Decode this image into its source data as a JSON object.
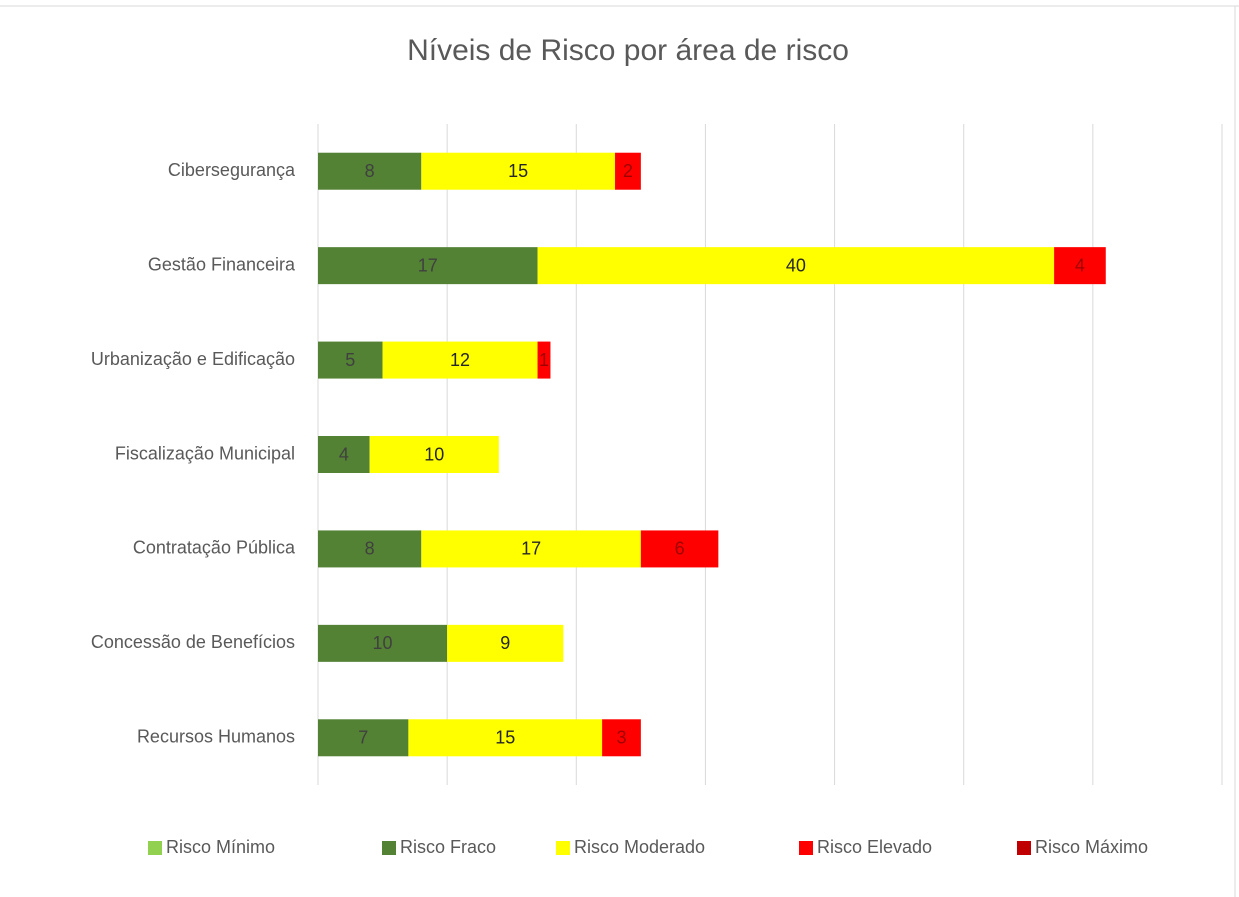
{
  "chart_data": {
    "type": "stacked_bar_horizontal",
    "title": "Níveis de Risco por área de risco",
    "categories": [
      "Cibersegurança",
      "Gestão Financeira",
      "Urbanização e Edificação",
      "Fiscalização Municipal",
      "Contratação Pública",
      "Concessão de Benefícios",
      "Recursos Humanos"
    ],
    "series": [
      {
        "name": "Risco Mínimo",
        "color": "#92d050",
        "values": [
          null,
          null,
          null,
          null,
          null,
          null,
          null
        ]
      },
      {
        "name": "Risco Fraco",
        "color": "#548235",
        "values": [
          8,
          17,
          5,
          4,
          8,
          10,
          7
        ]
      },
      {
        "name": "Risco Moderado",
        "color": "#ffff00",
        "values": [
          15,
          40,
          12,
          10,
          17,
          9,
          15
        ]
      },
      {
        "name": "Risco Elevado",
        "color": "#ff0000",
        "values": [
          2,
          4,
          1,
          null,
          6,
          null,
          3
        ]
      },
      {
        "name": "Risco Máximo",
        "color": "#c00000",
        "values": [
          null,
          null,
          null,
          null,
          null,
          null,
          null
        ]
      }
    ],
    "xlim": [
      0,
      70
    ],
    "xticks": [
      0,
      10,
      20,
      30,
      40,
      50,
      60,
      70
    ],
    "grid": true,
    "legend": "bottom"
  }
}
